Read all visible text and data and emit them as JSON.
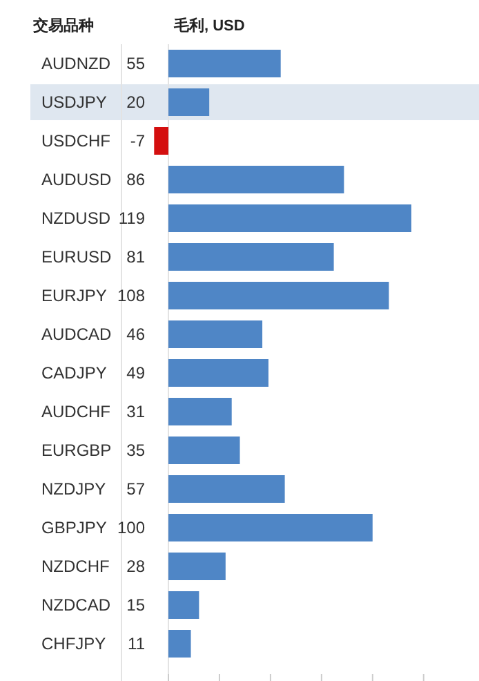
{
  "chart_data": {
    "type": "bar",
    "orientation": "horizontal",
    "ylabel": "交易品种",
    "xlabel": "毛利, USD",
    "categories": [
      "AUDNZD",
      "USDJPY",
      "USDCHF",
      "AUDUSD",
      "NZDUSD",
      "EURUSD",
      "EURJPY",
      "AUDCAD",
      "CADJPY",
      "AUDCHF",
      "EURGBP",
      "NZDJPY",
      "GBPJPY",
      "NZDCHF",
      "NZDCAD",
      "CHFJPY"
    ],
    "values": [
      55,
      20,
      -7,
      86,
      119,
      81,
      108,
      46,
      49,
      31,
      35,
      57,
      100,
      28,
      15,
      11
    ],
    "colors": [
      "#4f86c6",
      "#4f86c6",
      "#d40f0f",
      "#4f86c6",
      "#4f86c6",
      "#4f86c6",
      "#4f86c6",
      "#4f86c6",
      "#4f86c6",
      "#4f86c6",
      "#4f86c6",
      "#4f86c6",
      "#4f86c6",
      "#4f86c6",
      "#4f86c6",
      "#4f86c6"
    ],
    "data_labels": true,
    "bands": [
      {
        "axis": "y",
        "from": "USDJPY",
        "to": "USDJPY",
        "color": "#dfe7f0"
      }
    ],
    "xticks": [
      {
        "value": 0,
        "label": null
      },
      {
        "value": 25,
        "label": null
      },
      {
        "value": 50,
        "label": null
      },
      {
        "value": 75,
        "label": null
      },
      {
        "value": 100,
        "label": null
      },
      {
        "value": 125,
        "label": null
      }
    ],
    "grid": false
  }
}
